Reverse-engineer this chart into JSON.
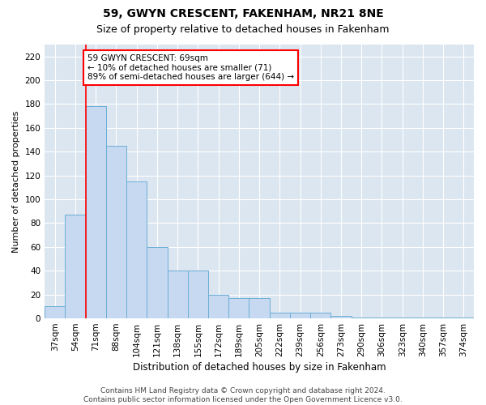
{
  "title": "59, GWYN CRESCENT, FAKENHAM, NR21 8NE",
  "subtitle": "Size of property relative to detached houses in Fakenham",
  "xlabel": "Distribution of detached houses by size in Fakenham",
  "ylabel": "Number of detached properties",
  "categories": [
    "37sqm",
    "54sqm",
    "71sqm",
    "88sqm",
    "104sqm",
    "121sqm",
    "138sqm",
    "155sqm",
    "172sqm",
    "189sqm",
    "205sqm",
    "222sqm",
    "239sqm",
    "256sqm",
    "273sqm",
    "290sqm",
    "306sqm",
    "323sqm",
    "340sqm",
    "357sqm",
    "374sqm"
  ],
  "values": [
    10,
    87,
    178,
    145,
    115,
    60,
    40,
    40,
    20,
    17,
    17,
    5,
    5,
    5,
    2,
    1,
    1,
    1,
    1,
    1,
    1
  ],
  "bar_color": "#c6d9f0",
  "bar_edge_color": "#6baed6",
  "annotation_text": "59 GWYN CRESCENT: 69sqm\n← 10% of detached houses are smaller (71)\n89% of semi-detached houses are larger (644) →",
  "annotation_box_color": "white",
  "annotation_box_edge": "red",
  "ylim": [
    0,
    230
  ],
  "yticks": [
    0,
    20,
    40,
    60,
    80,
    100,
    120,
    140,
    160,
    180,
    200,
    220
  ],
  "footer": "Contains HM Land Registry data © Crown copyright and database right 2024.\nContains public sector information licensed under the Open Government Licence v3.0.",
  "plot_bg_color": "#dce6f1",
  "title_fontsize": 10,
  "subtitle_fontsize": 9,
  "xlabel_fontsize": 8.5,
  "ylabel_fontsize": 8,
  "tick_fontsize": 7.5,
  "annotation_fontsize": 7.5,
  "footer_fontsize": 6.5,
  "red_line_index": 1.5
}
